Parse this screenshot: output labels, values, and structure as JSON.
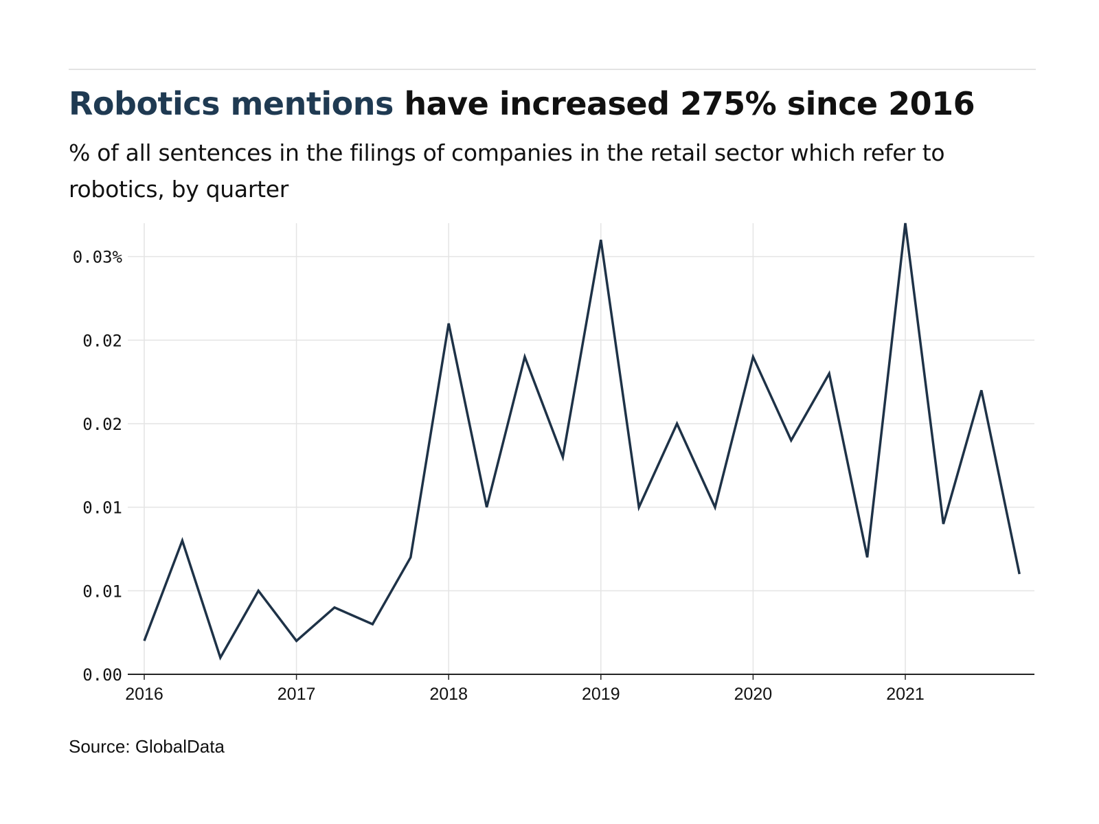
{
  "headline": {
    "accent": "Robotics mentions",
    "rest": " have increased 275% since 2016"
  },
  "subtitle": "% of all sentences in the filings of companies in the retail sector which refer to robotics, by quarter",
  "source": "Source: GlobalData",
  "colors": {
    "accent": "#1f3a52",
    "line": "#1e3247",
    "grid": "#e4e4e4",
    "axis": "#222222",
    "text": "#111111"
  },
  "chart_data": {
    "type": "line",
    "title": "Robotics mentions have increased 275% since 2016",
    "xlabel": "",
    "ylabel": "",
    "x_tick_labels": [
      "2016",
      "2017",
      "2018",
      "2019",
      "2020",
      "2021"
    ],
    "y_tick_labels": [
      "0.00",
      "0.01",
      "0.01",
      "0.02",
      "0.02",
      "0.03%"
    ],
    "y_tick_values": [
      0,
      0.005,
      0.01,
      0.015,
      0.02,
      0.025
    ],
    "ylim": [
      0,
      0.027
    ],
    "grid": true,
    "x": [
      "2016 Q1",
      "2016 Q2",
      "2016 Q3",
      "2016 Q4",
      "2017 Q1",
      "2017 Q2",
      "2017 Q3",
      "2017 Q4",
      "2018 Q1",
      "2018 Q2",
      "2018 Q3",
      "2018 Q4",
      "2019 Q1",
      "2019 Q2",
      "2019 Q3",
      "2019 Q4",
      "2020 Q1",
      "2020 Q2",
      "2020 Q3",
      "2020 Q4",
      "2021 Q1",
      "2021 Q2",
      "2021 Q3",
      "2021 Q4"
    ],
    "series": [
      {
        "values": [
          0.002,
          0.008,
          0.001,
          0.005,
          0.002,
          0.004,
          0.003,
          0.007,
          0.021,
          0.01,
          0.019,
          0.013,
          0.026,
          0.01,
          0.015,
          0.01,
          0.019,
          0.014,
          0.018,
          0.007,
          0.027,
          0.009,
          0.017,
          0.006
        ]
      }
    ]
  }
}
